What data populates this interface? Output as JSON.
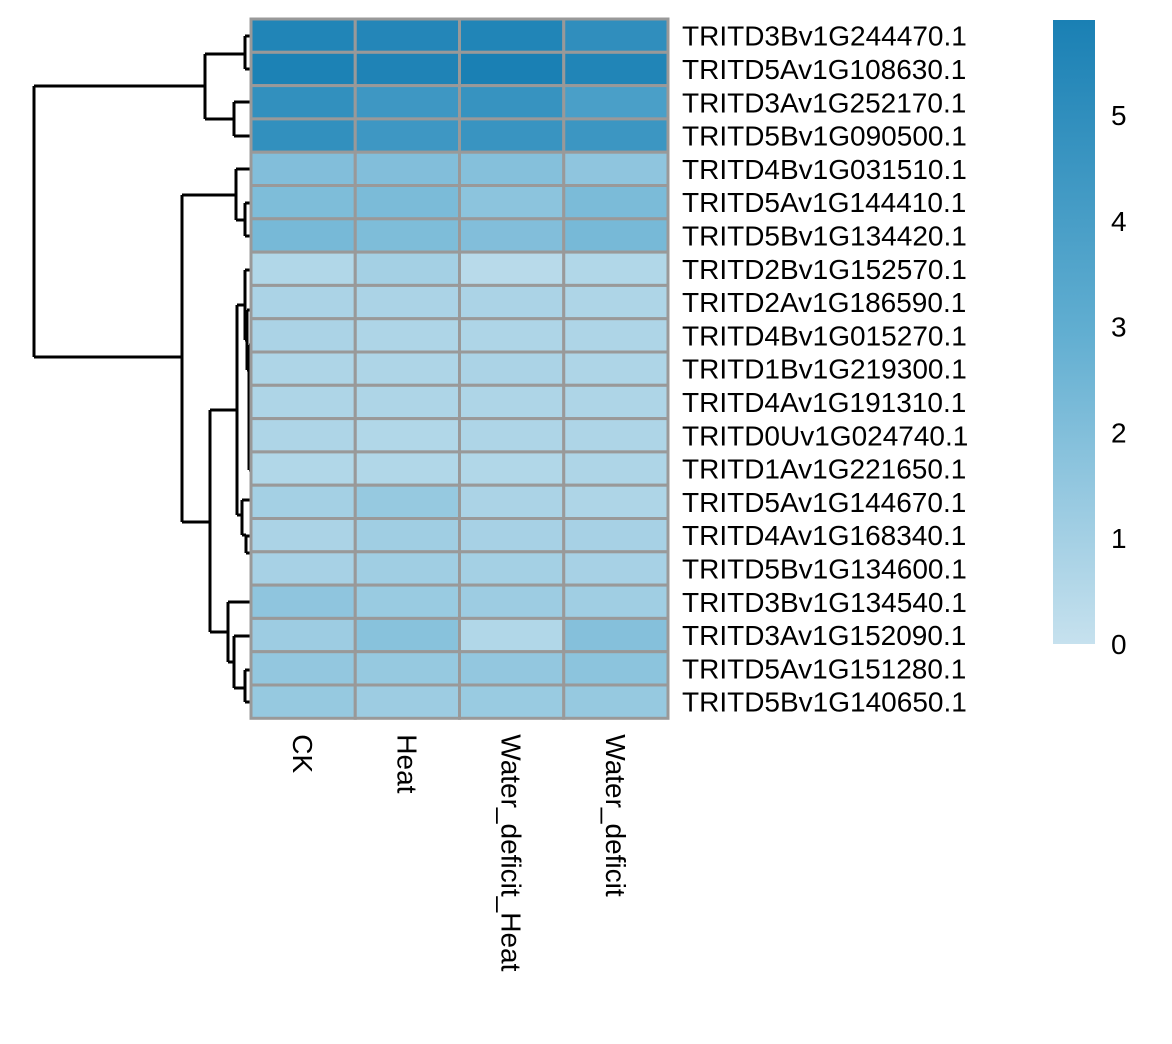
{
  "chart_data": {
    "type": "heatmap",
    "columns": [
      "CK",
      "Heat",
      "Water_deficit_Heat",
      "Water_deficit"
    ],
    "rows": [
      "TRITD3Bv1G244470.1",
      "TRITD5Av1G108630.1",
      "TRITD3Av1G252170.1",
      "TRITD5Bv1G090500.1",
      "TRITD4Bv1G031510.1",
      "TRITD5Av1G144410.1",
      "TRITD5Bv1G134420.1",
      "TRITD2Bv1G152570.1",
      "TRITD2Av1G186590.1",
      "TRITD4Bv1G015270.1",
      "TRITD1Bv1G219300.1",
      "TRITD4Av1G191310.1",
      "TRITD0Uv1G024740.1",
      "TRITD1Av1G221650.1",
      "TRITD5Av1G144670.1",
      "TRITD4Av1G168340.1",
      "TRITD5Bv1G134600.1",
      "TRITD3Bv1G134540.1",
      "TRITD3Av1G152090.1",
      "TRITD5Av1G151280.1",
      "TRITD5Bv1G140650.1"
    ],
    "values": [
      [
        5.6,
        5.5,
        5.6,
        5.0
      ],
      [
        5.8,
        5.7,
        5.9,
        5.6
      ],
      [
        4.9,
        4.4,
        4.7,
        3.9
      ],
      [
        4.9,
        4.4,
        4.6,
        4.5
      ],
      [
        2.0,
        2.0,
        1.9,
        1.6
      ],
      [
        2.1,
        2.2,
        1.7,
        2.2
      ],
      [
        2.3,
        2.1,
        2.0,
        2.3
      ],
      [
        0.6,
        1.0,
        0.4,
        0.6
      ],
      [
        0.8,
        0.8,
        0.8,
        0.7
      ],
      [
        0.8,
        0.7,
        0.7,
        0.7
      ],
      [
        0.7,
        0.7,
        0.8,
        0.7
      ],
      [
        0.7,
        0.7,
        0.7,
        0.7
      ],
      [
        0.7,
        0.6,
        0.7,
        0.7
      ],
      [
        0.6,
        0.6,
        0.6,
        0.7
      ],
      [
        1.0,
        1.4,
        0.8,
        0.7
      ],
      [
        0.8,
        1.1,
        0.9,
        0.9
      ],
      [
        0.9,
        1.1,
        1.0,
        0.9
      ],
      [
        1.6,
        1.3,
        1.2,
        1.1
      ],
      [
        1.2,
        1.8,
        0.6,
        1.9
      ],
      [
        1.5,
        1.4,
        1.5,
        1.7
      ],
      [
        1.4,
        1.2,
        1.3,
        1.4
      ]
    ],
    "color_scale": {
      "min": 0,
      "max": 5.9,
      "low_color": "#c6e1ee",
      "mid_color": "#61aed1",
      "high_color": "#1a80b4"
    },
    "legend": {
      "ticks": [
        0,
        1,
        2,
        3,
        4,
        5
      ],
      "placement": "right"
    },
    "cell_border_color": "#999999",
    "dendrogram": "rows",
    "title": "",
    "xlabel": "",
    "ylabel": ""
  }
}
